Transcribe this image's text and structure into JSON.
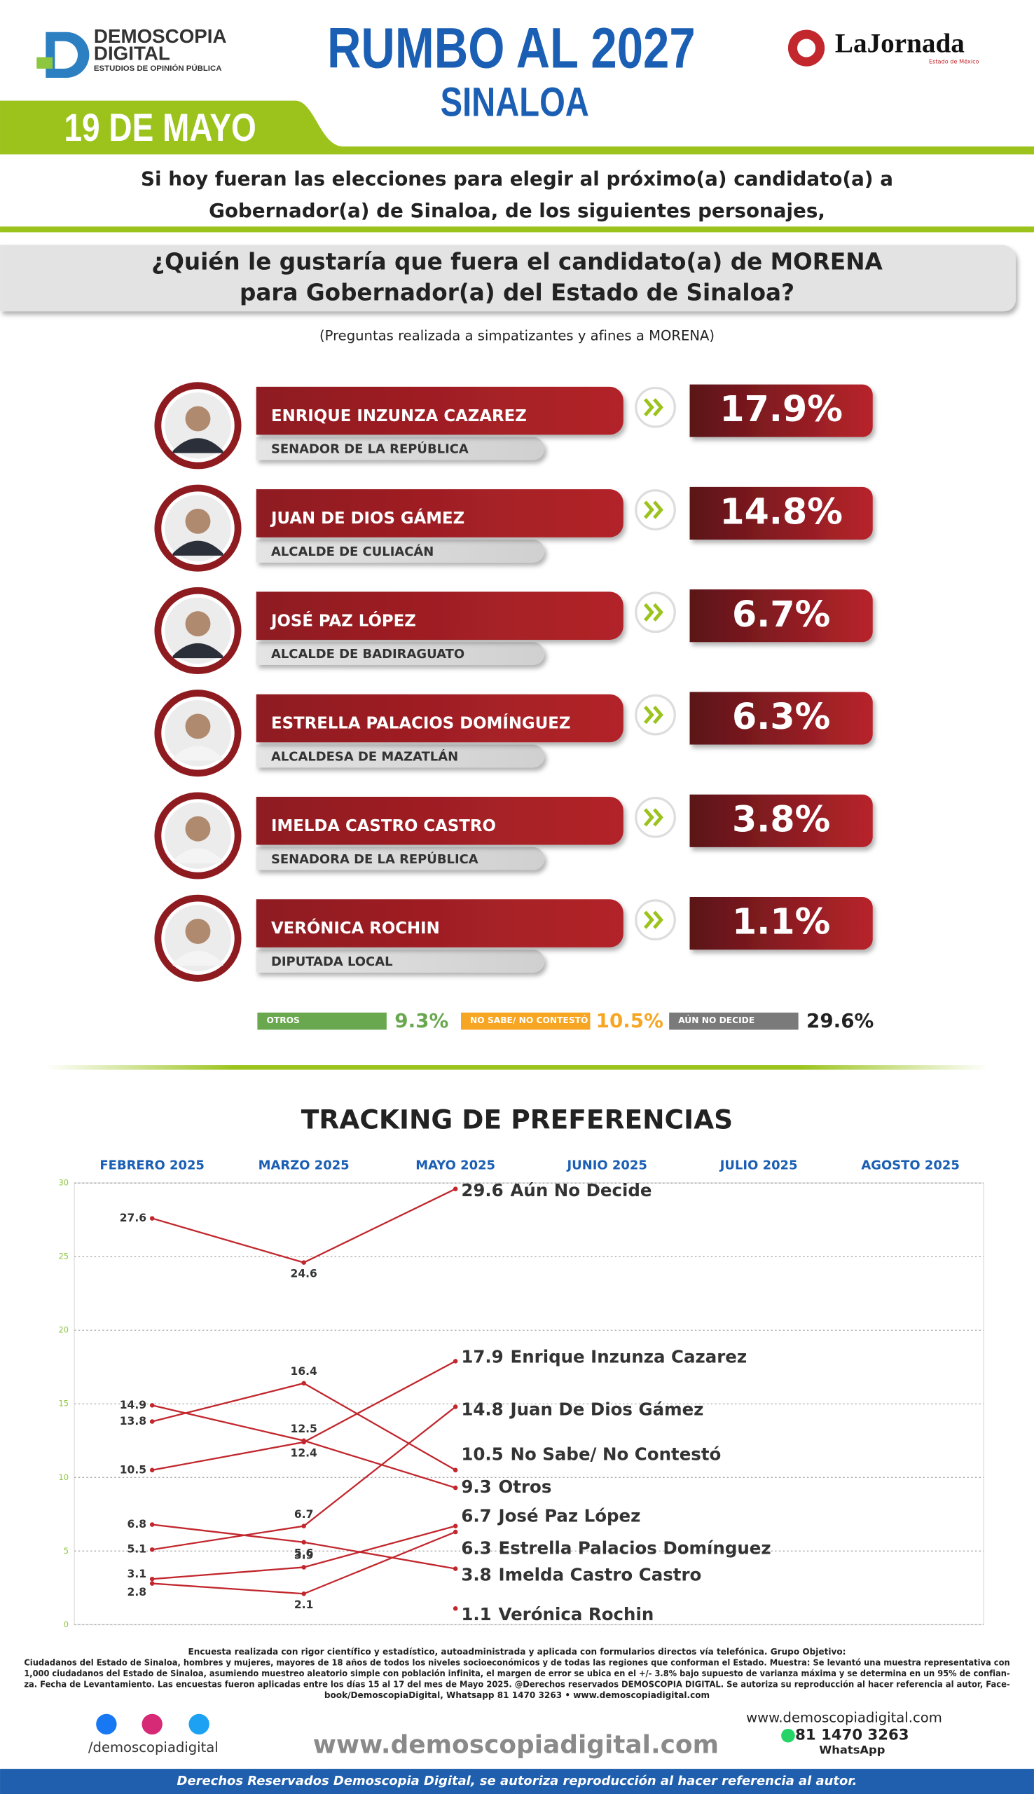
{
  "header": {
    "logo": {
      "line1": "DEMOSCOPIA",
      "line2": "DIGITAL",
      "tagline": "ESTUDIOS DE OPINIÓN PÚBLICA"
    },
    "title": "RUMBO AL 2027",
    "subtitle": "SINALOA",
    "partner": {
      "name": "LaJornada",
      "edition": "Estado de México"
    },
    "date": "19 DE MAYO"
  },
  "intro": [
    "Si hoy fueran las elecciones para elegir al próximo(a) candidato(a) a",
    "Gobernador(a) de Sinaloa, de los siguientes personajes,"
  ],
  "question": [
    "¿Quién le gustaría que fuera el candidato(a) de MORENA",
    "para Gobernador(a) del Estado de Sinaloa?"
  ],
  "note": "(Preguntas realizada a simpatizantes y afines a MORENA)",
  "candidates": [
    {
      "name": "ENRIQUE INZUNZA CAZAREZ",
      "role": "SENADOR DE LA REPÚBLICA",
      "result": "17.9%"
    },
    {
      "name": "JUAN DE DIOS GÁMEZ",
      "role": "ALCALDE DE CULIACÁN",
      "result": "14.8%"
    },
    {
      "name": "JOSÉ PAZ LÓPEZ",
      "role": "ALCALDE DE BADIRAGUATO",
      "result": "6.7%"
    },
    {
      "name": "ESTRELLA PALACIOS DOMÍNGUEZ",
      "role": "ALCALDESA DE MAZATLÁN",
      "result": "6.3%"
    },
    {
      "name": "IMELDA CASTRO CASTRO",
      "role": "SENADORA DE LA REPÚBLICA",
      "result": "3.8%"
    },
    {
      "name": "VERÓNICA ROCHIN",
      "role": "DIPUTADA LOCAL",
      "result": "1.1%"
    }
  ],
  "others": [
    {
      "label": "OTROS",
      "result": "9.3%",
      "color": "#6aa84f"
    },
    {
      "label": "NO SABE/ NO CONTESTÓ",
      "result": "10.5%",
      "color": "#f6a623"
    },
    {
      "label": "AÚN NO DECIDE",
      "result": "29.6%",
      "color": "#7a7a7a"
    }
  ],
  "chart_data": {
    "type": "line",
    "title": "TRACKING DE PREFERENCIAS",
    "categories": [
      "FEBRERO 2025",
      "MARZO 2025",
      "MAYO 2025",
      "JUNIO 2025",
      "JULIO 2025",
      "AGOSTO 2025"
    ],
    "series": [
      {
        "name": "Aún No Decide",
        "color": "#c1272d",
        "values": [
          27.6,
          24.6,
          29.6,
          null,
          null,
          null
        ]
      },
      {
        "name": "Enrique Inzunza Cazarez",
        "color": "#c1272d",
        "values": [
          10.5,
          12.4,
          17.9,
          null,
          null,
          null
        ]
      },
      {
        "name": "Juan De Dios Gámez",
        "color": "#c1272d",
        "values": [
          5.1,
          6.7,
          14.8,
          null,
          null,
          null
        ]
      },
      {
        "name": "No Sabe/ No Contestó",
        "color": "#c1272d",
        "values": [
          13.8,
          16.4,
          10.5,
          null,
          null,
          null
        ]
      },
      {
        "name": "Otros",
        "color": "#c1272d",
        "values": [
          14.9,
          12.5,
          9.3,
          null,
          null,
          null
        ]
      },
      {
        "name": "José Paz López",
        "color": "#c1272d",
        "values": [
          3.1,
          3.9,
          6.7,
          null,
          null,
          null
        ]
      },
      {
        "name": "Estrella Palacios Domínguez",
        "color": "#c1272d",
        "values": [
          2.8,
          2.1,
          6.3,
          null,
          null,
          null
        ]
      },
      {
        "name": "Imelda Castro Castro",
        "color": "#c1272d",
        "values": [
          6.8,
          5.6,
          3.8,
          null,
          null,
          null
        ]
      },
      {
        "name": "Verónica Rochin",
        "color": "#c1272d",
        "values": [
          null,
          null,
          1.1,
          null,
          null,
          null
        ]
      }
    ],
    "ylim": [
      0,
      30
    ],
    "yticks": [
      0,
      5,
      10,
      15,
      20,
      25,
      30
    ],
    "grid": true
  },
  "footer": {
    "methodology": [
      "Encuesta realizada con rigor científico y estadístico, autoadministrada y aplicada con formularios directos vía telefónica. Grupo Objetivo:",
      "Ciudadanos del Estado de Sinaloa, hombres y mujeres, mayores de 18 años de todos los niveles socioeconómicos y de todas las regiones que conforman el Estado. Muestra: Se levantó una muestra representativa con",
      "1,000 ciudadanos del Estado de Sinaloa, asumiendo muestreo aleatorio simple con población infinita, el margen de error se ubica en el +/- 3.8% bajo supuesto de varianza máxima y se determina en un 95% de confian-",
      "za. Fecha de Levantamiento. Las encuestas fueron aplicadas entre los días 15 al 17 del mes de Mayo 2025. @Derechos reservados DEMOSCOPIA DIGITAL. Se autoriza su reproducción al hacer referencia al autor, Face-",
      "book/DemoscopiaDigital, Whatsapp 81 1470 3263 • www.demoscopiadigital.com"
    ],
    "social": "/demoscopiadigital",
    "website": "www.demoscopiadigital.com",
    "phone": "81 1470 3263",
    "channel": "WhatsApp",
    "rights": "Derechos Reservados Demoscopia Digital, se autoriza reproducción al hacer referencia al autor."
  }
}
